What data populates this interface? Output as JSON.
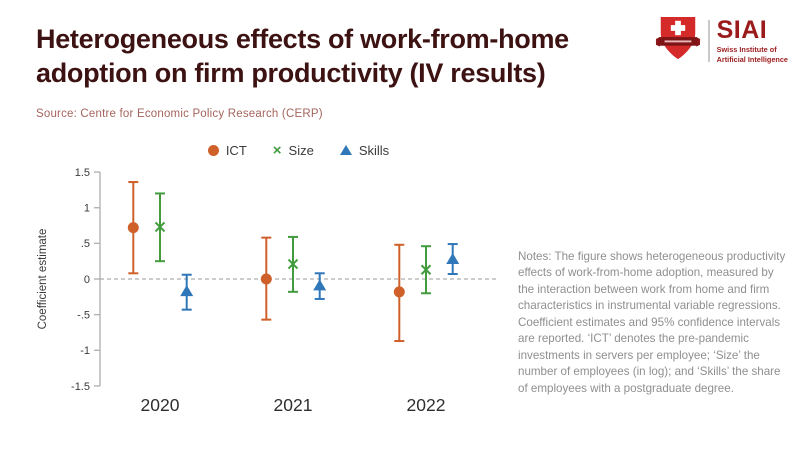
{
  "page": {
    "title_line1": "Heterogeneous effects of work-from-home",
    "title_line2": "adoption on firm productivity (IV results)",
    "source": "Source: Centre for Economic Policy Research (CERP)"
  },
  "logo": {
    "brand": "SIAI",
    "subtitle_line1": "Swiss Institute of",
    "subtitle_line2": "Artificial Intelligence",
    "shield_icon": "swiss-shield-icon"
  },
  "chart_data": {
    "type": "scatter",
    "subtype": "coefficient-plot-with-95ci-errorbars",
    "title": "",
    "xlabel": "",
    "ylabel": "Coefficient estimate",
    "ylim": [
      -1.5,
      1.5
    ],
    "yticks": [
      1.5,
      1,
      0.5,
      0,
      -0.5,
      -1,
      -1.5
    ],
    "ytick_labels": [
      "1.5",
      "1",
      ".5",
      "0",
      "-.5",
      "-1",
      "-1.5"
    ],
    "categories": [
      "2020",
      "2021",
      "2022"
    ],
    "zero_reference_line": 0,
    "grid": false,
    "legend_position": "top-center",
    "ci_level": "95%",
    "series": [
      {
        "name": "ICT",
        "marker": "circle",
        "color": "#d0602a",
        "estimates": [
          0.72,
          0.0,
          -0.18
        ],
        "ci_low": [
          0.08,
          -0.57,
          -0.87
        ],
        "ci_high": [
          1.36,
          0.58,
          0.48
        ]
      },
      {
        "name": "Size",
        "marker": "x",
        "color": "#429c3e",
        "estimates": [
          0.73,
          0.21,
          0.13
        ],
        "ci_low": [
          0.25,
          -0.18,
          -0.2
        ],
        "ci_high": [
          1.2,
          0.59,
          0.46
        ]
      },
      {
        "name": "Skills",
        "marker": "triangle",
        "color": "#2f77b8",
        "estimates": [
          -0.17,
          -0.09,
          0.28
        ],
        "ci_low": [
          -0.43,
          -0.28,
          0.07
        ],
        "ci_high": [
          0.06,
          0.08,
          0.49
        ]
      }
    ]
  },
  "notes": {
    "text": "Notes: The figure shows heterogeneous productivity effects of work-from-home adoption, measured by the interaction between work from home and firm characteristics in instrumental variable regressions. Coefficient estimates and 95% confidence intervals are reported. ‘ICT’ denotes the pre-pandemic investments in servers per employee; ‘Size’ the number of employees (in log); and ‘Skills’ the share of employees with a postgraduate degree."
  },
  "colors": {
    "title_text": "#3d1212",
    "source_text": "#a5655e",
    "notes_text": "#8f8f8f",
    "axis_text": "#3a3a3a",
    "axis_line": "#b3b3b3",
    "zero_line": "#999999",
    "brand_red": "#d42a2a",
    "brand_band_red": "#7e1416",
    "brand_dark_red": "#9b1b1c"
  }
}
